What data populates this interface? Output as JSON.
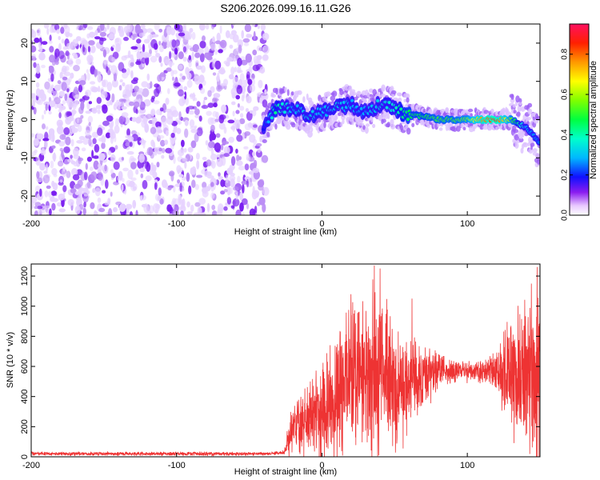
{
  "title": "S206.2026.099.16.11.G26",
  "chart_data": [
    {
      "type": "heatmap",
      "xlabel": "Height of straight line (km)",
      "ylabel": "Frequency (Hz)",
      "xlim": [
        -200,
        150
      ],
      "ylim": [
        -25,
        25
      ],
      "xticks": [
        -200,
        -100,
        0,
        100
      ],
      "yticks": [
        -20,
        -10,
        0,
        10,
        20
      ],
      "colorbar": {
        "label": "Normalized spectral amplitude",
        "range": [
          0,
          0.95
        ],
        "ticks": [
          0.0,
          0.2,
          0.4,
          0.6,
          0.8
        ]
      },
      "noise_region": {
        "x": [
          -200,
          -38
        ],
        "amplitude": [
          0.1,
          0.3
        ]
      },
      "signal_ridge": {
        "x": [
          -40,
          -32,
          -20,
          -10,
          0,
          10,
          20,
          30,
          40,
          50,
          60,
          70,
          80,
          90,
          100,
          110,
          120,
          130,
          140,
          150
        ],
        "frequency": [
          -2,
          3,
          3,
          1,
          2,
          3,
          4,
          2,
          4,
          3,
          1,
          1,
          0,
          0,
          0,
          0,
          0,
          0,
          -2,
          -6
        ],
        "amplitude": [
          0.2,
          0.45,
          0.3,
          0.35,
          0.3,
          0.35,
          0.3,
          0.3,
          0.35,
          0.4,
          0.5,
          0.5,
          0.55,
          0.55,
          0.6,
          0.8,
          0.9,
          0.6,
          0.3,
          0.25
        ]
      }
    },
    {
      "type": "line",
      "xlabel": "Height of straight line (km)",
      "ylabel": "SNR (10 * v/v)",
      "xlim": [
        -200,
        150
      ],
      "ylim": [
        0,
        1280
      ],
      "xticks": [
        -200,
        -100,
        0,
        100
      ],
      "yticks": [
        0,
        200,
        400,
        600,
        800,
        1000,
        1200
      ],
      "series": [
        {
          "name": "SNR",
          "color": "#ee3333",
          "x": [
            -200,
            -180,
            -160,
            -140,
            -120,
            -100,
            -80,
            -60,
            -40,
            -30,
            -26,
            -22,
            -18,
            -14,
            -10,
            -6,
            -2,
            2,
            6,
            10,
            14,
            18,
            22,
            26,
            30,
            34,
            38,
            42,
            46,
            50,
            54,
            58,
            62,
            66,
            70,
            74,
            78,
            82,
            86,
            90,
            94,
            98,
            102,
            106,
            110,
            114,
            118,
            122,
            126,
            130,
            134,
            138,
            142,
            146,
            150
          ],
          "mean": [
            20,
            20,
            20,
            20,
            20,
            20,
            20,
            20,
            20,
            25,
            30,
            150,
            200,
            230,
            250,
            280,
            300,
            330,
            370,
            420,
            480,
            520,
            540,
            560,
            530,
            510,
            540,
            560,
            520,
            480,
            470,
            490,
            520,
            540,
            540,
            550,
            560,
            560,
            560,
            570,
            570,
            570,
            570,
            570,
            570,
            570,
            570,
            560,
            560,
            560,
            540,
            550,
            520,
            500,
            500
          ],
          "spread": [
            15,
            15,
            15,
            15,
            15,
            15,
            15,
            15,
            15,
            15,
            20,
            150,
            200,
            240,
            280,
            330,
            380,
            420,
            460,
            520,
            560,
            640,
            600,
            560,
            600,
            700,
            720,
            660,
            600,
            560,
            480,
            440,
            360,
            300,
            260,
            220,
            180,
            140,
            110,
            100,
            90,
            90,
            90,
            90,
            90,
            120,
            160,
            200,
            400,
            480,
            560,
            600,
            620,
            640,
            700
          ],
          "peaks": [
            [
              36,
              1270
            ],
            [
              40,
              1250
            ],
            [
              20,
              1080
            ],
            [
              62,
              1050
            ],
            [
              148,
              1260
            ],
            [
              144,
              1150
            ],
            [
              130,
              870
            ]
          ]
        }
      ]
    }
  ]
}
